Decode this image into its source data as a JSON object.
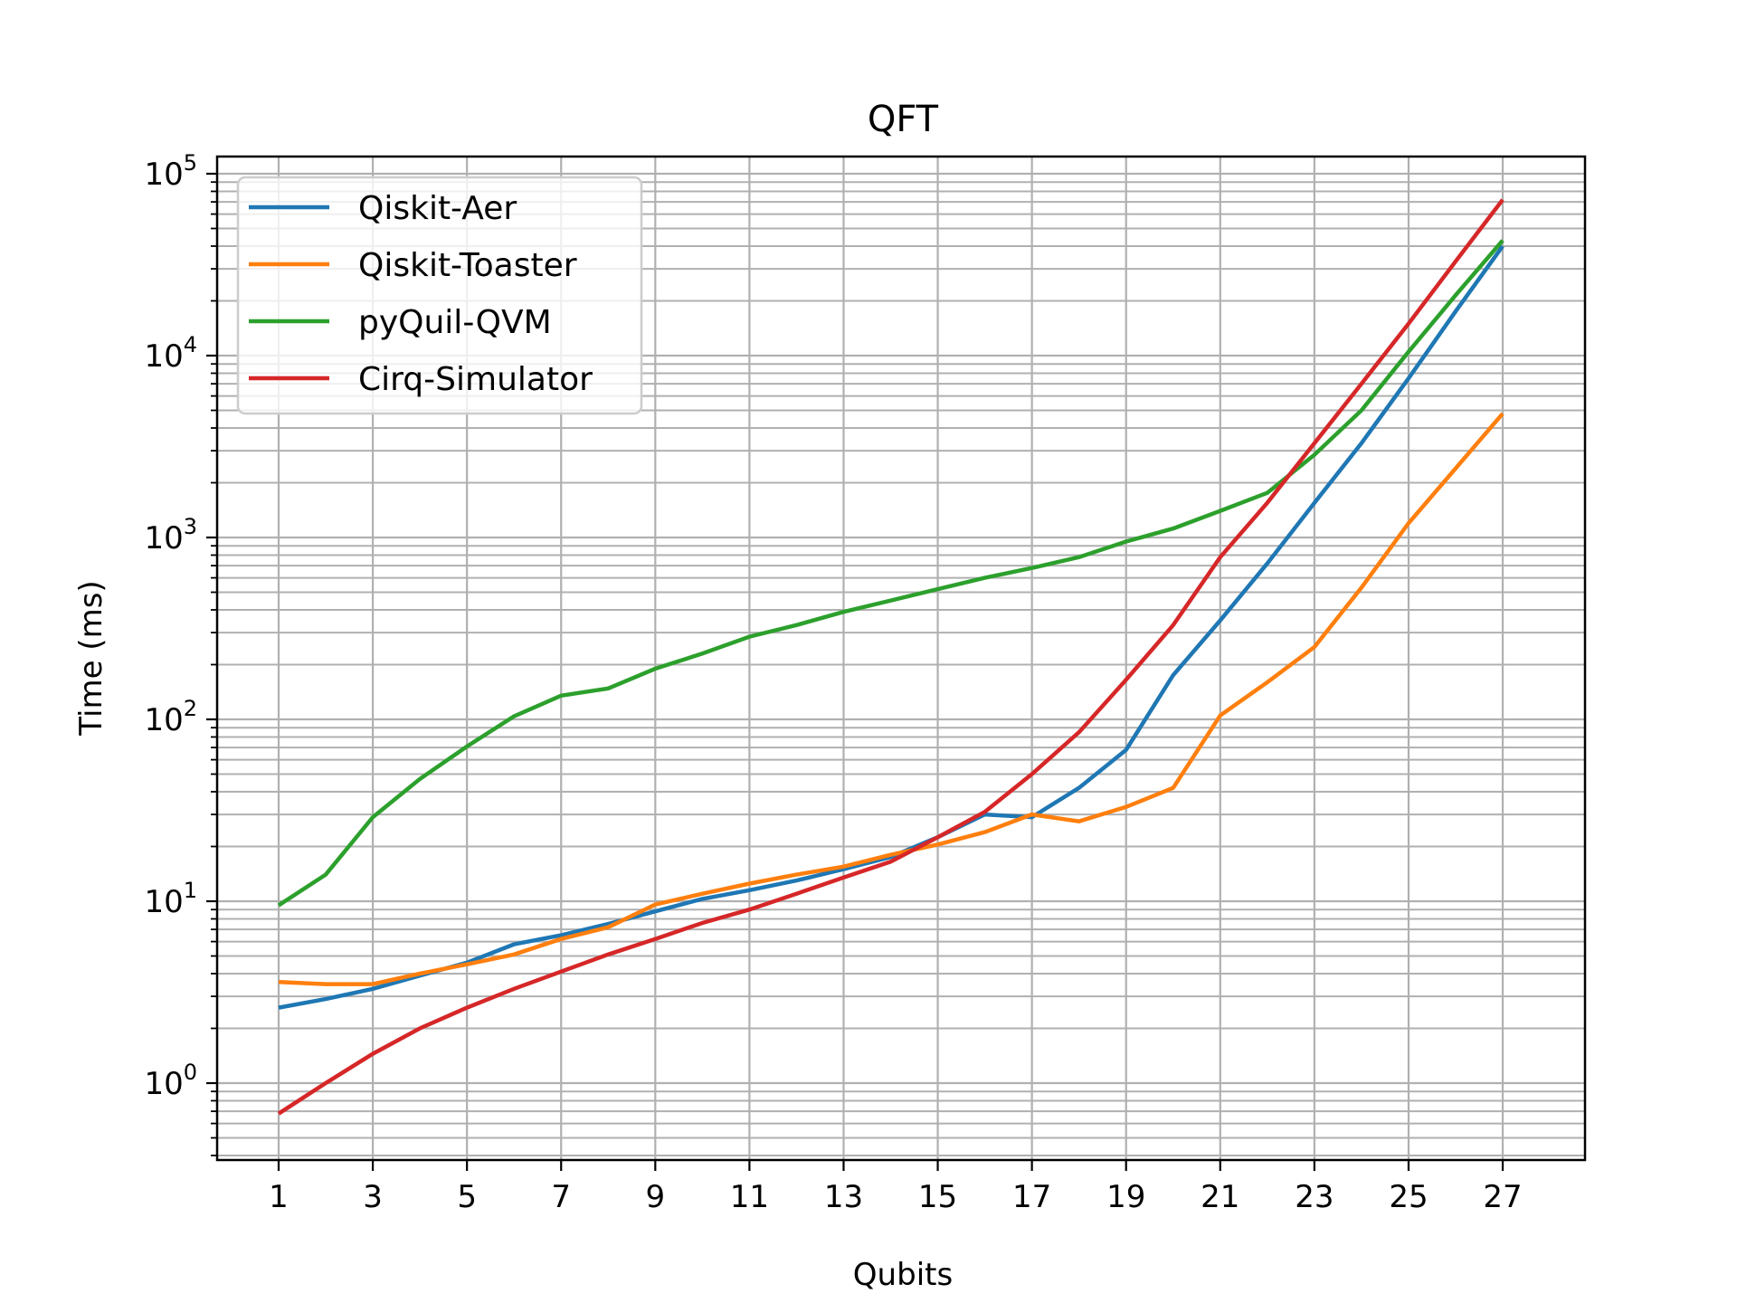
{
  "chart_data": {
    "type": "line",
    "title": "QFT",
    "xlabel": "Qubits",
    "ylabel": "Time (ms)",
    "yscale": "log",
    "ylim": [
      0.38,
      125000
    ],
    "xlim": [
      -0.3,
      28.3
    ],
    "grid": {
      "major": true,
      "minor": true
    },
    "legend_position": "upper left",
    "x": [
      1,
      2,
      3,
      4,
      5,
      6,
      7,
      8,
      9,
      10,
      11,
      12,
      13,
      14,
      15,
      16,
      17,
      18,
      19,
      20,
      21,
      22,
      23,
      24,
      25,
      26,
      27
    ],
    "x_tick_labels": [
      "1",
      "3",
      "5",
      "7",
      "9",
      "11",
      "13",
      "15",
      "17",
      "19",
      "21",
      "23",
      "25",
      "27"
    ],
    "y_tick_labels": [
      {
        "base": "10",
        "exp": "0",
        "value": 1
      },
      {
        "base": "10",
        "exp": "1",
        "value": 10
      },
      {
        "base": "10",
        "exp": "2",
        "value": 100
      },
      {
        "base": "10",
        "exp": "3",
        "value": 1000
      },
      {
        "base": "10",
        "exp": "4",
        "value": 10000
      },
      {
        "base": "10",
        "exp": "5",
        "value": 100000
      }
    ],
    "series": [
      {
        "name": "Qiskit-Aer",
        "color": "#1f77b4",
        "values": [
          2.6,
          2.9,
          3.3,
          3.9,
          4.6,
          5.8,
          6.5,
          7.5,
          8.8,
          10.3,
          11.5,
          13,
          15,
          17.5,
          22.5,
          30,
          29,
          42,
          68,
          175,
          350,
          720,
          1550,
          3300,
          7500,
          17500,
          40000
        ]
      },
      {
        "name": "Qiskit-Toaster",
        "color": "#ff7f0e",
        "values": [
          3.6,
          3.5,
          3.5,
          4.0,
          4.5,
          5.1,
          6.2,
          7.2,
          9.6,
          11,
          12.5,
          14,
          15.5,
          18,
          20.5,
          24,
          30,
          27.5,
          33,
          42,
          105,
          160,
          250,
          530,
          1200,
          2400,
          4800
        ]
      },
      {
        "name": "pyQuil-QVM",
        "color": "#2ca02c",
        "values": [
          9.5,
          14,
          29,
          47,
          71,
          104,
          135,
          148,
          190,
          230,
          285,
          330,
          390,
          450,
          520,
          600,
          680,
          780,
          950,
          1120,
          1400,
          1760,
          2850,
          5000,
          10500,
          21500,
          43000
        ]
      },
      {
        "name": "Cirq-Simulator",
        "color": "#d62728",
        "values": [
          0.68,
          1.0,
          1.45,
          2.0,
          2.6,
          3.3,
          4.1,
          5.1,
          6.2,
          7.6,
          9.0,
          11,
          13.5,
          16.5,
          22.5,
          31,
          50,
          85,
          165,
          330,
          780,
          1550,
          3300,
          7000,
          15000,
          33000,
          72000
        ]
      }
    ]
  },
  "style": {
    "grid_color": "#b0b0b0",
    "axis_color": "#000000",
    "legend_border": "#cccccc"
  }
}
